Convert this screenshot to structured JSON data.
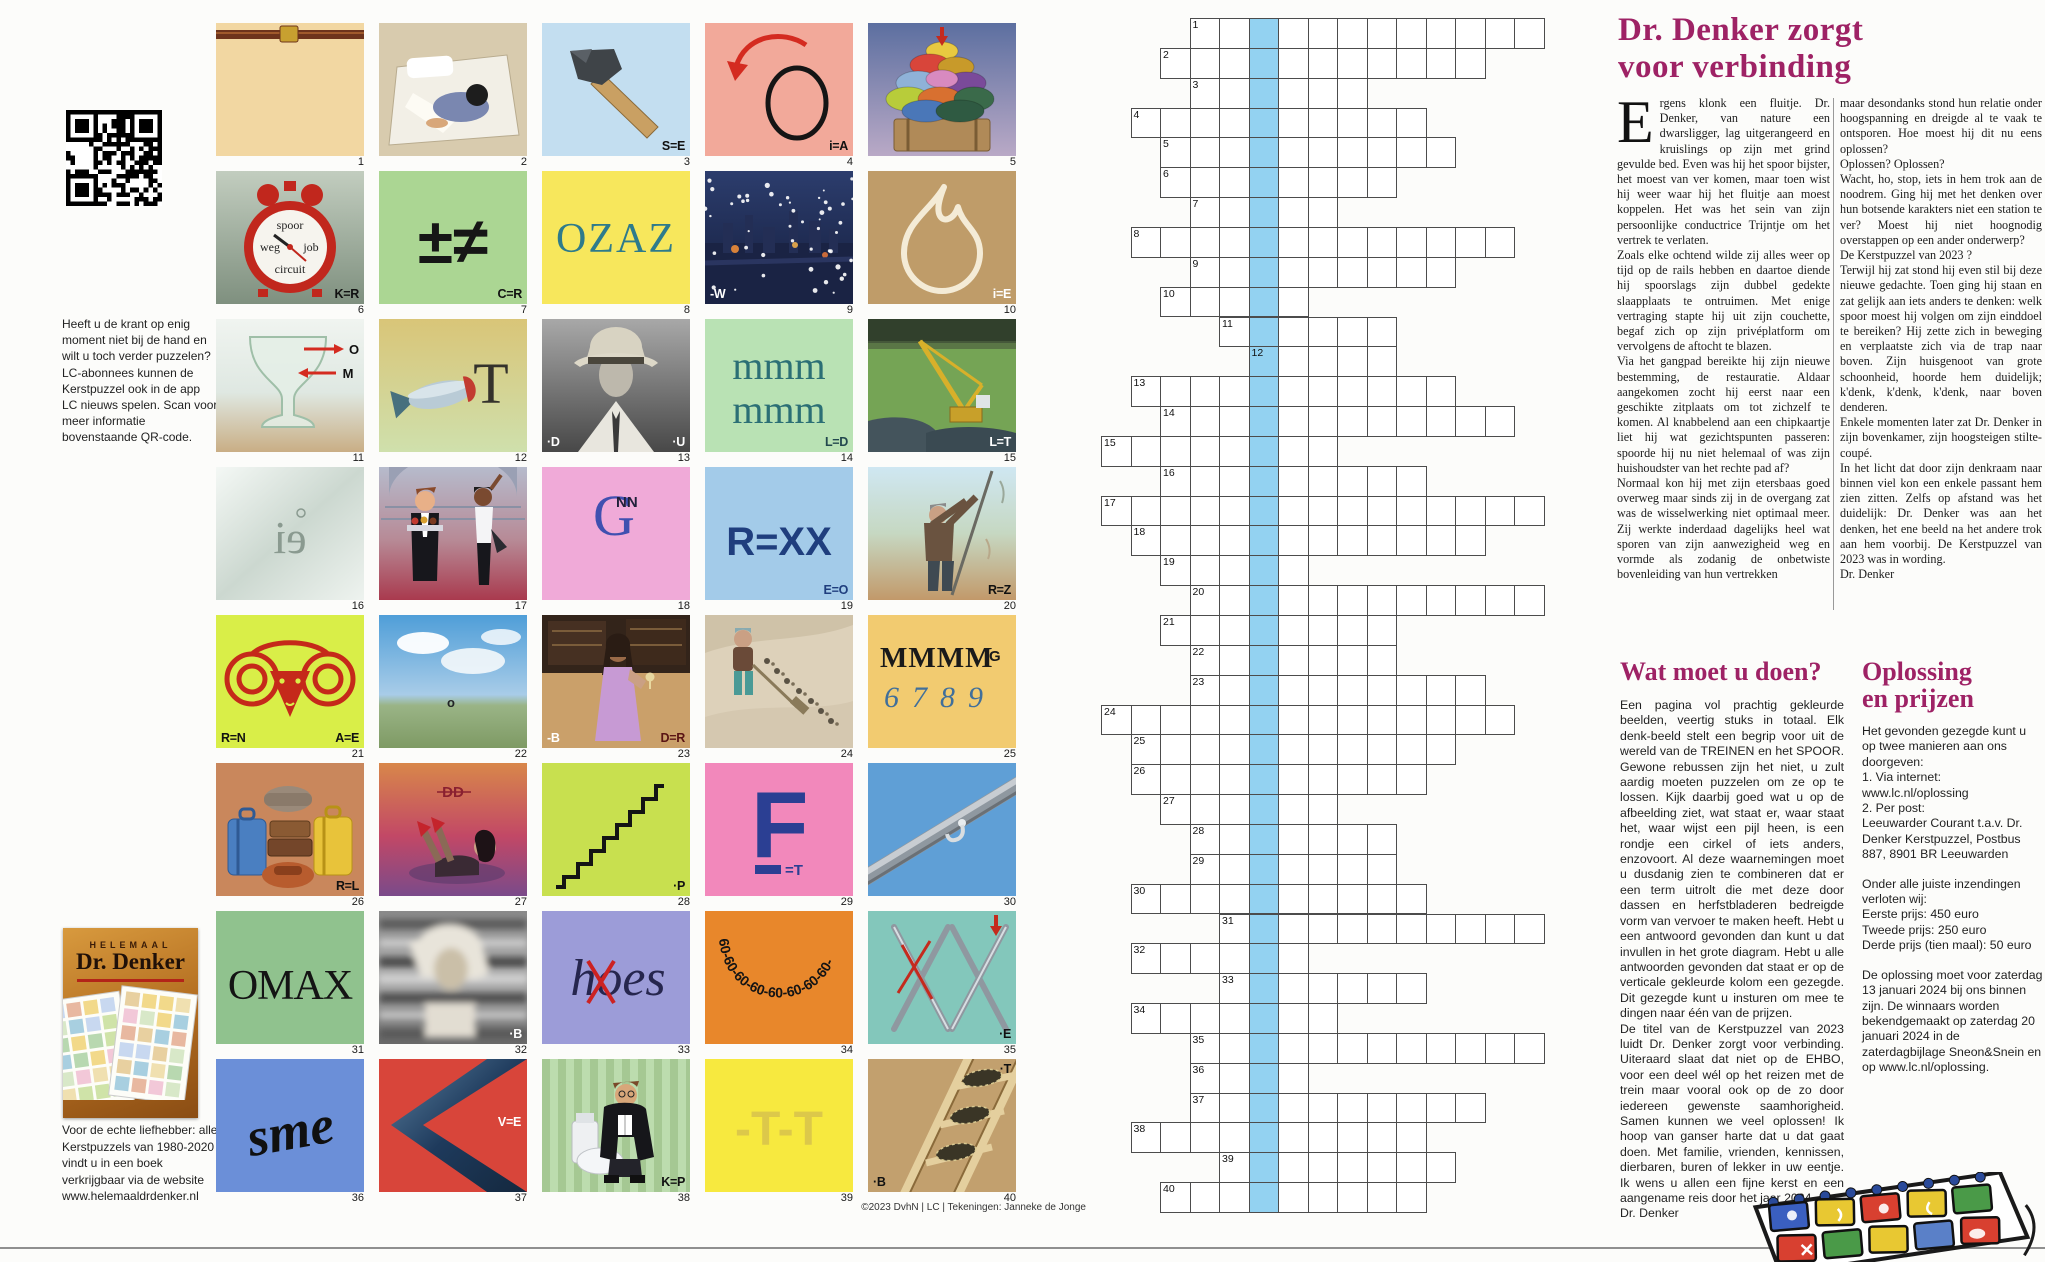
{
  "sidebar": {
    "qr_text": "Heeft u de krant op enig moment niet bij de hand en wilt u toch verder puzzelen? LC-abonnees kunnen de Kerstpuzzel ook in de app LC nieuws spelen. Scan voor meer informatie bovenstaande QR-code.",
    "book": {
      "small_title": "HELEMAAL",
      "title": "Dr. Denker",
      "promo": "Voor de echte liefhebber: alle Kerstpuzzels van 1980-2020 vindt u in een boek verkrijgbaar via de website www.helemaaldrdenker.nl"
    }
  },
  "copyright": "©2023 DvhN | LC | Tekeningen: Janneke de Jonge",
  "tiles": [
    {
      "n": "1",
      "art": "blanket",
      "bg": "#f2d7a2",
      "codes": []
    },
    {
      "n": "2",
      "art": "bed",
      "codes": []
    },
    {
      "n": "3",
      "art": "axe",
      "bg": "#c3def0",
      "codes": [
        {
          "pos": "br",
          "t": "S=E"
        }
      ]
    },
    {
      "n": "4",
      "art": "arrow",
      "bg": "#f2a99a",
      "codes": [
        {
          "pos": "br",
          "t": "i=A"
        }
      ]
    },
    {
      "n": "5",
      "art": "pillows",
      "codes": []
    },
    {
      "n": "6",
      "art": "clock",
      "words": [
        "spoor",
        "weg",
        "job",
        "circuit"
      ],
      "codes": [
        {
          "pos": "br",
          "t": "K=R"
        }
      ]
    },
    {
      "n": "7",
      "art": "pm",
      "bg": "#abd693",
      "text": "±≠",
      "codes": [
        {
          "pos": "br",
          "t": "C=R"
        }
      ]
    },
    {
      "n": "8",
      "art": "ozaz",
      "bg": "#f7e75c",
      "text": "OZAZ",
      "codes": []
    },
    {
      "n": "9",
      "art": "night",
      "codes": [
        {
          "pos": "bl",
          "t": "-W",
          "light": true
        }
      ]
    },
    {
      "n": "10",
      "art": "flame",
      "bg": "#bf9c69",
      "codes": [
        {
          "pos": "br",
          "t": "i=E",
          "light": true
        }
      ]
    },
    {
      "n": "11",
      "art": "goblet",
      "labels": [
        "O",
        "M"
      ],
      "codes": []
    },
    {
      "n": "12",
      "art": "fish",
      "text": "T",
      "codes": []
    },
    {
      "n": "13",
      "art": "portrait",
      "codes": [
        {
          "pos": "bl",
          "t": "·D",
          "light": true
        },
        {
          "pos": "br",
          "t": "·U",
          "light": true
        }
      ]
    },
    {
      "n": "14",
      "art": "mmm",
      "bg": "#b9e2b4",
      "text": "mmm",
      "codes": [
        {
          "pos": "br",
          "t": "L=D",
          "color": "#22484e"
        }
      ]
    },
    {
      "n": "15",
      "art": "crane",
      "codes": [
        {
          "pos": "br",
          "t": "L=T",
          "light": true
        }
      ]
    },
    {
      "n": "16",
      "art": "ei",
      "text": "ei",
      "codes": []
    },
    {
      "n": "17",
      "art": "waiters",
      "codes": []
    },
    {
      "n": "18",
      "art": "gnn",
      "bg": "#f0aad8",
      "text": "G",
      "sub": "NN",
      "codes": []
    },
    {
      "n": "19",
      "art": "rxx",
      "bg": "#a3cbe9",
      "text": "R=XX",
      "codes": [
        {
          "pos": "br",
          "t": "E=O",
          "color": "#1f3e7e"
        }
      ]
    },
    {
      "n": "20",
      "art": "pole",
      "codes": [
        {
          "pos": "br",
          "t": "R=Z"
        }
      ]
    },
    {
      "n": "21",
      "art": "ram",
      "bg": "#d9ee48",
      "codes": [
        {
          "pos": "bl",
          "t": "R=N"
        },
        {
          "pos": "br",
          "t": "A=E"
        }
      ]
    },
    {
      "n": "22",
      "art": "sky",
      "text": "o",
      "codes": []
    },
    {
      "n": "23",
      "art": "barwoman",
      "codes": [
        {
          "pos": "bl",
          "t": "-B",
          "light": true
        },
        {
          "pos": "br",
          "t": "D=R",
          "color": "#5a1414"
        }
      ]
    },
    {
      "n": "24",
      "art": "dune",
      "codes": []
    },
    {
      "n": "25",
      "art": "mmmmg",
      "bg": "#f2cb70",
      "text": "MMMM·G",
      "sub": "6789",
      "codes": []
    },
    {
      "n": "26",
      "art": "luggage",
      "bg": "#c9875c",
      "codes": [
        {
          "pos": "br",
          "t": "R=L"
        }
      ]
    },
    {
      "n": "27",
      "art": "recline",
      "text": "DD",
      "codes": []
    },
    {
      "n": "28",
      "art": "stairs",
      "bg": "#c8e04f",
      "codes": [
        {
          "pos": "br",
          "t": "·P"
        }
      ]
    },
    {
      "n": "29",
      "art": "bigF",
      "bg": "#f288bb",
      "text": "F",
      "sub": "=T",
      "codes": []
    },
    {
      "n": "30",
      "art": "rail",
      "bg": "#5f9fd6",
      "codes": []
    },
    {
      "n": "31",
      "art": "omax",
      "bg": "#90c28e",
      "text": "OMAX",
      "codes": []
    },
    {
      "n": "32",
      "art": "blur",
      "codes": [
        {
          "pos": "br",
          "t": "·B",
          "light": true
        }
      ]
    },
    {
      "n": "33",
      "art": "hoes",
      "bg": "#9c9cd8",
      "text": "hoes",
      "codes": []
    },
    {
      "n": "34",
      "art": "arc60",
      "bg": "#e8872b",
      "text": "60-60-60-60-60-60-60-60-",
      "codes": []
    },
    {
      "n": "35",
      "art": "needles",
      "bg": "#83c7bb",
      "codes": [
        {
          "pos": "br",
          "t": "·E"
        }
      ]
    },
    {
      "n": "36",
      "art": "sme",
      "bg": "#6b8fd8",
      "text": "sme",
      "codes": []
    },
    {
      "n": "37",
      "art": "chevron",
      "bg": "#d8453a",
      "codes": [
        {
          "pos": "mr",
          "t": "V=E",
          "light": true
        }
      ]
    },
    {
      "n": "38",
      "art": "toilet",
      "codes": [
        {
          "pos": "br",
          "t": "K=P"
        }
      ]
    },
    {
      "n": "39",
      "art": "tt",
      "bg": "#f7e93f",
      "text": "-T-T",
      "codes": []
    },
    {
      "n": "40",
      "art": "ladder",
      "codes": [
        {
          "pos": "tr",
          "t": "·T"
        },
        {
          "pos": "bl",
          "t": "·B"
        }
      ]
    }
  ],
  "grid": {
    "blue_col": 5,
    "blue_color": "#93d2f1",
    "rows": [
      [
        3,
        12
      ],
      [
        2,
        11
      ],
      [
        3,
        6
      ],
      [
        1,
        10
      ],
      [
        2,
        10
      ],
      [
        2,
        8
      ],
      [
        3,
        5
      ],
      [
        1,
        13
      ],
      [
        3,
        9
      ],
      [
        2,
        5
      ],
      [
        4,
        6
      ],
      [
        5,
        5
      ],
      [
        1,
        11
      ],
      [
        2,
        12
      ],
      [
        0,
        8
      ],
      [
        2,
        9
      ],
      [
        0,
        15
      ],
      [
        1,
        12
      ],
      [
        2,
        5
      ],
      [
        3,
        12
      ],
      [
        2,
        8
      ],
      [
        3,
        7
      ],
      [
        3,
        10
      ],
      [
        0,
        14
      ],
      [
        1,
        11
      ],
      [
        1,
        10
      ],
      [
        2,
        6
      ],
      [
        3,
        7
      ],
      [
        3,
        7
      ],
      [
        1,
        10
      ],
      [
        4,
        11
      ],
      [
        1,
        6
      ],
      [
        4,
        7
      ],
      [
        1,
        7
      ],
      [
        3,
        12
      ],
      [
        3,
        4
      ],
      [
        3,
        10
      ],
      [
        1,
        10
      ],
      [
        4,
        8
      ],
      [
        2,
        9
      ]
    ]
  },
  "article": {
    "headline1": "Dr. Denker zorgt",
    "headline2": "voor verbinding",
    "col1": [
      "Ergens klonk een fluitje. Dr. Denker, van nature een dwarsligger, lag uitgerangeerd en kruislings op zijn met grind gevulde bed. Even was hij het spoor bijster, het moest van ver komen, maar toen wist hij weer waar hij het fluitje aan moest koppelen. Het was het sein van zijn persoonlijke conductrice Trijntje om het vertrek te verlaten.",
      "Zoals elke ochtend wilde zij alles weer op tijd op de rails hebben en daartoe diende hij spoorslags zijn dubbel gedekte slaapplaats te ontruimen. Met enige vertraging stapte hij uit zijn couchette, begaf zich op zijn privéplatform om vervolgens de aftocht te blazen.",
      "Via het gangpad bereikte hij zijn nieuwe bestemming, de restauratie. Aldaar aangekomen zocht hij eerst naar een geschikte zitplaats om tot zichzelf te komen. Al knabbelend aan een chipkaartje liet hij wat gezichtspunten passeren: spoorde hij nu niet helemaal of was zijn huishoudster van het rechte pad af?",
      "Normaal kon hij met zijn etersbaas goed overweg maar sinds zij in de overgang zat was de wisselwerking niet optimaal meer. Zij werkte inderdaad dagelijks heel wat sporen van zijn aanwezigheid weg en vormde als zodanig de onbetwiste bovenleiding van hun vertrekken"
    ],
    "col2": [
      "maar desondanks stond hun relatie onder hoogspanning en dreigde al te vaak te ontsporen. Hoe moest hij dit nu eens oplossen?",
      "Oplossen? Oplossen?",
      "Wacht, ho, stop, iets in hem trok aan de noodrem. Ging hij met het denken over hun botsende karakters niet een station te ver? Moest hij niet hoognodig overstappen op een ander onderwerp?",
      "De Kerstpuzzel van 2023 ?",
      "Terwijl hij zat stond hij even stil bij deze nieuwe gedachte. Toen ging hij staan en zat gelijk aan iets anders te denken: welk spoor moest hij volgen om zijn einddoel te bereiken? Hij zette zich in beweging en verplaatste zich via de trap naar boven. Zijn huisgenoot van grote schoonheid, hoorde hem duidelijk; k'denk, k'denk, k'denk, naar boven denderen.",
      "Enkele momenten later zat Dr. Denker in zijn bovenkamer, zijn hoogsteigen stilte-coupé.",
      "In het licht dat door zijn denkraam naar binnen viel kon een enkele passant hem zien zitten. Zelfs op afstand was het duidelijk: Dr. Denker was aan het denken, het ene beeld na het andere trok aan hem voorbij. De Kerstpuzzel van 2023 was in wording."
    ],
    "signature": "Dr. Denker"
  },
  "watmoet": {
    "heading": "Wat moet u doen?",
    "paragraphs": [
      "Een pagina vol prachtig gekleurde beelden, veertig stuks in totaal. Elk denk-beeld stelt een begrip voor uit de wereld van de TREINEN en het SPOOR. Gewone rebussen zijn het niet, u zult aardig moeten puzzelen om ze op te lossen. Kijk daarbij goed wat u op de afbeelding ziet, wat staat er, waar staat het, waar wijst een pijl heen, is een rondje een cirkel of iets anders, enzovoort. Al deze waarnemingen moet u dusdanig zien te combineren dat er een term uitrolt die met deze door dassen en herfstbladeren bedreigde vorm van vervoer te maken heeft. Hebt u een antwoord gevonden dan kunt u dat invullen in het grote diagram. Hebt u alle antwoorden gevonden dat staat er op de verticale gekleurde kolom een gezegde. Dit gezegde kunt u insturen om mee te dingen naar één van de prijzen.",
      "De titel van de Kerstpuzzel van 2023 luidt Dr. Denker zorgt voor verbinding. Uiteraard slaat dat niet op de EHBO, voor een deel wél op het reizen met de trein maar vooral ook op de zo door iedereen gewenste saamhorigheid. Samen kunnen we veel oplossen! Ik hoop van ganser harte dat u dat gaat doen. Met familie, vrienden, kennissen, dierbaren, buren of lekker in uw eentje. Ik wens u allen een fijne kerst en een aangename reis door het jaar 2024."
    ],
    "signature": "Dr. Denker"
  },
  "oplossing": {
    "heading1": "Oplossing",
    "heading2": "en prijzen",
    "blocks": [
      [
        "Het gevonden gezegde kunt u op twee manieren aan ons doorgeven:",
        "1. Via internet:",
        "www.lc.nl/oplossing",
        "2. Per post:",
        "Leeuwarder Courant t.a.v. Dr. Denker Kerstpuzzel, Postbus 887, 8901 BR Leeuwarden"
      ],
      [
        "Onder alle juiste inzendingen verloten wij:",
        "Eerste prijs: 450 euro",
        "Tweede prijs: 250 euro",
        "Derde prijs (tien maal): 50 euro"
      ],
      [
        "De oplossing moet voor zaterdag 13 januari 2024 bij ons binnen zijn. De winnaars worden bekendgemaakt op zaterdag 20 januari 2024 in de zaterdagbijlage Sneon&Snein en op www.lc.nl/oplossing."
      ]
    ]
  },
  "colors": {
    "accent": "#9e2265",
    "grid_blue": "#93d2f1"
  }
}
